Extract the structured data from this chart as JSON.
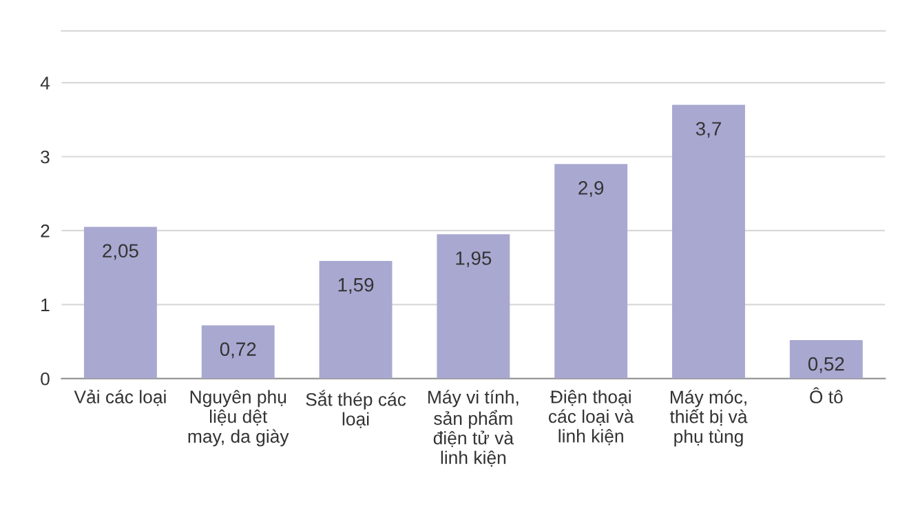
{
  "chart_data": {
    "type": "bar",
    "categories": [
      "Vải các loại",
      "Nguyên phụ liệu dệt may, da giày",
      "Sắt thép các loại",
      "Máy vi tính, sản phẩm điện tử và linh kiện",
      "Điện thoại các loại và linh kiện",
      "Máy móc, thiết bị và phụ tùng",
      "Ô tô"
    ],
    "values": [
      2.05,
      0.72,
      1.59,
      1.95,
      2.9,
      3.7,
      0.52
    ],
    "value_labels": [
      "2,05",
      "0,72",
      "1,59",
      "1,95",
      "2,9",
      "3,7",
      "0,52"
    ],
    "color": "#a9a8d1",
    "ylim": [
      0,
      4.7
    ],
    "yticks": [
      0,
      1,
      2,
      3,
      4
    ],
    "grid": "y",
    "legend": false
  }
}
